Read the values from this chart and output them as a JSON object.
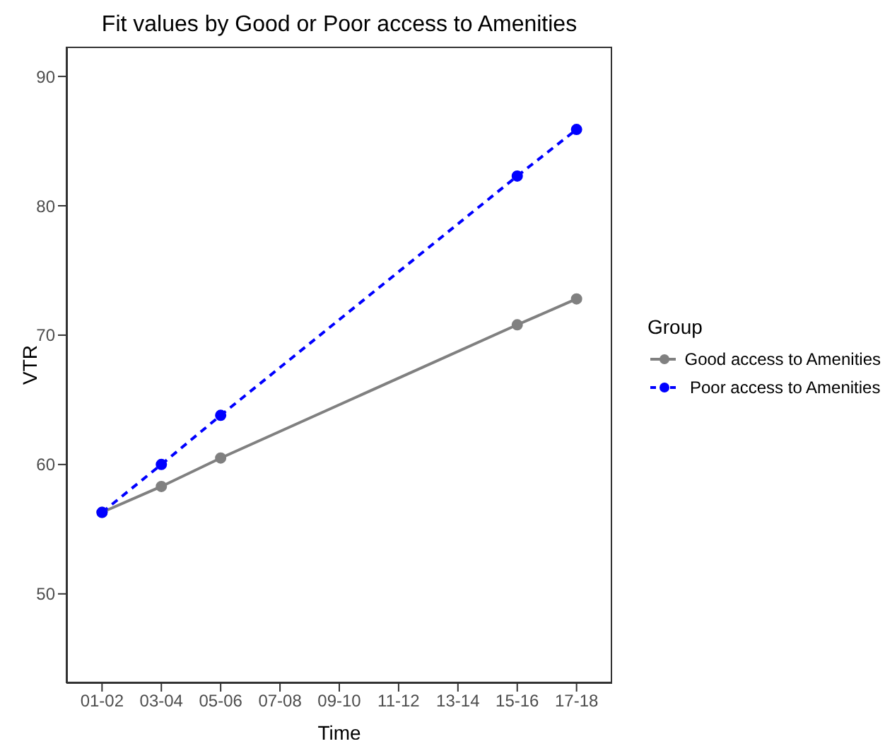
{
  "chart_data": {
    "type": "line",
    "title": "Fit values by Good or Poor access to Amenities",
    "xlabel": "Time",
    "ylabel": "VTR",
    "legend_title": "Group",
    "legend": "right",
    "grid": false,
    "marker": "circle",
    "categories": [
      "01-02",
      "03-04",
      "05-06",
      "07-08",
      "09-10",
      "11-12",
      "13-14",
      "15-16",
      "17-18"
    ],
    "ylim": [
      43.1,
      92.3
    ],
    "yticks": [
      50,
      60,
      70,
      80,
      90
    ],
    "series": [
      {
        "name": "Good access to Amenities",
        "color": "#808080",
        "line_style": "solid",
        "values": [
          56.3,
          58.3,
          60.5,
          null,
          null,
          null,
          null,
          70.8,
          72.8
        ]
      },
      {
        "name": "Poor access to Amenities",
        "color": "#0000ff",
        "line_style": "dashed",
        "values": [
          56.3,
          60.0,
          63.8,
          null,
          null,
          null,
          null,
          82.3,
          85.9
        ]
      }
    ]
  }
}
